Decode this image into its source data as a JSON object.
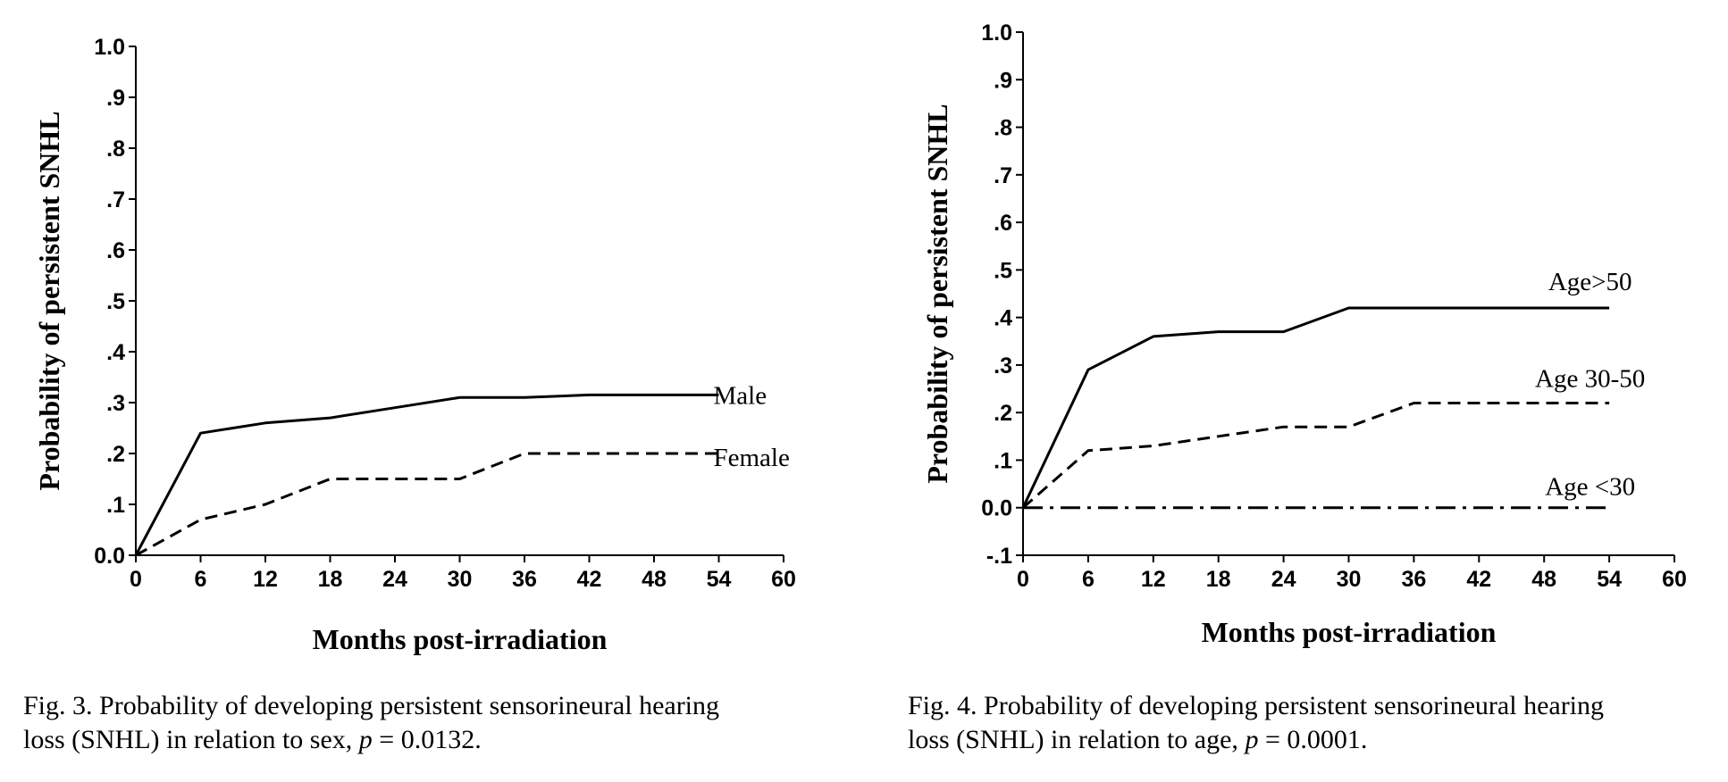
{
  "chart_data": [
    {
      "type": "line",
      "xlabel": "Months post-irradiation",
      "ylabel": "Probability of persistent SNHL",
      "xlim": [
        0,
        60
      ],
      "ylim": [
        0,
        1.0
      ],
      "x_ticks": [
        "0",
        "6",
        "12",
        "18",
        "24",
        "30",
        "36",
        "42",
        "48",
        "54",
        "60"
      ],
      "y_ticks": [
        "0.0",
        ".1",
        ".2",
        ".3",
        ".4",
        ".5",
        ".6",
        ".7",
        ".8",
        ".9",
        "1.0"
      ],
      "grid": false,
      "series": [
        {
          "name": "Male",
          "style": "solid",
          "x": [
            0,
            6,
            12,
            18,
            24,
            30,
            36,
            42,
            48,
            54
          ],
          "y": [
            0.0,
            0.24,
            0.26,
            0.27,
            0.29,
            0.31,
            0.31,
            0.315,
            0.315,
            0.315
          ]
        },
        {
          "name": "Female",
          "style": "dashed",
          "x": [
            0,
            6,
            12,
            18,
            24,
            30,
            36,
            42,
            48,
            54
          ],
          "y": [
            0.0,
            0.07,
            0.1,
            0.15,
            0.15,
            0.15,
            0.2,
            0.2,
            0.2,
            0.2
          ]
        }
      ],
      "caption_main": "Fig. 3. Probability of developing persistent sensorineural hearing",
      "caption_tail": "loss (SNHL) in relation to sex,",
      "caption_p_symbol": "p",
      "caption_p_value": "= 0.0132."
    },
    {
      "type": "line",
      "xlabel": "Months post-irradiation",
      "ylabel": "Probability of persistent SNHL",
      "xlim": [
        0,
        60
      ],
      "ylim": [
        -0.1,
        1.0
      ],
      "x_ticks": [
        "0",
        "6",
        "12",
        "18",
        "24",
        "30",
        "36",
        "42",
        "48",
        "54",
        "60"
      ],
      "y_ticks": [
        "-.1",
        "0.0",
        ".1",
        ".2",
        ".3",
        ".4",
        ".5",
        ".6",
        ".7",
        ".8",
        ".9",
        "1.0"
      ],
      "grid": false,
      "series": [
        {
          "name": "Age>50",
          "style": "solid",
          "x": [
            0,
            6,
            12,
            18,
            24,
            30,
            36,
            42,
            48,
            54
          ],
          "y": [
            0.0,
            0.29,
            0.36,
            0.37,
            0.37,
            0.42,
            0.42,
            0.42,
            0.42,
            0.42
          ]
        },
        {
          "name": "Age 30-50",
          "style": "dashed",
          "x": [
            0,
            6,
            12,
            18,
            24,
            30,
            36,
            42,
            48,
            54
          ],
          "y": [
            0.0,
            0.12,
            0.13,
            0.15,
            0.17,
            0.17,
            0.22,
            0.22,
            0.22,
            0.22
          ]
        },
        {
          "name": "Age <30",
          "style": "dashdot",
          "x": [
            0,
            6,
            12,
            18,
            24,
            30,
            36,
            42,
            48,
            54
          ],
          "y": [
            0.0,
            0.0,
            0.0,
            0.0,
            0.0,
            0.0,
            0.0,
            0.0,
            0.0,
            0.0
          ]
        }
      ],
      "caption_main": "Fig. 4. Probability of developing persistent sensorineural hearing",
      "caption_tail": "loss (SNHL) in relation to age,",
      "caption_p_symbol": "p",
      "caption_p_value": "= 0.0001."
    }
  ]
}
